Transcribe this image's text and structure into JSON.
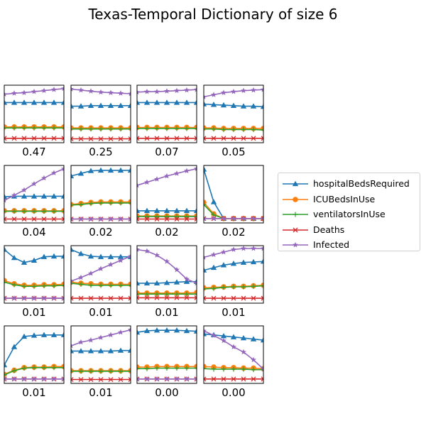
{
  "chart_data": {
    "type": "line",
    "title": "Texas-Temporal Dictionary of size 6",
    "series_styles": [
      {
        "name": "hospitalBedsRequired",
        "color": "#1f77b4",
        "marker": "triangle"
      },
      {
        "name": "ICUBedsInUse",
        "color": "#ff7f0e",
        "marker": "circle"
      },
      {
        "name": "ventilatorsInUse",
        "color": "#2ca02c",
        "marker": "plus"
      },
      {
        "name": "Deaths",
        "color": "#d62728",
        "marker": "x"
      },
      {
        "name": "Infected",
        "color": "#9467bd",
        "marker": "star"
      }
    ],
    "panels": [
      {
        "label": "0.47",
        "series": [
          [
            0.72,
            0.72,
            0.72,
            0.72,
            0.72,
            0.72,
            0.72
          ],
          [
            0.25,
            0.25,
            0.25,
            0.25,
            0.25,
            0.25,
            0.25
          ],
          [
            0.23,
            0.23,
            0.23,
            0.23,
            0.23,
            0.23,
            0.23
          ],
          [
            0.03,
            0.03,
            0.03,
            0.03,
            0.03,
            0.03,
            0.03
          ],
          [
            0.88,
            0.9,
            0.91,
            0.93,
            0.95,
            0.97,
            0.99
          ]
        ]
      },
      {
        "label": "0.25",
        "series": [
          [
            0.65,
            0.65,
            0.66,
            0.66,
            0.66,
            0.66,
            0.66
          ],
          [
            0.23,
            0.23,
            0.23,
            0.23,
            0.23,
            0.23,
            0.23
          ],
          [
            0.21,
            0.21,
            0.21,
            0.21,
            0.21,
            0.21,
            0.21
          ],
          [
            0.02,
            0.02,
            0.02,
            0.02,
            0.02,
            0.02,
            0.02
          ],
          [
            0.98,
            0.96,
            0.94,
            0.92,
            0.91,
            0.9,
            0.89
          ]
        ]
      },
      {
        "label": "0.07",
        "series": [
          [
            0.72,
            0.72,
            0.72,
            0.72,
            0.72,
            0.72,
            0.72
          ],
          [
            0.24,
            0.24,
            0.24,
            0.24,
            0.24,
            0.24,
            0.24
          ],
          [
            0.22,
            0.22,
            0.22,
            0.22,
            0.22,
            0.22,
            0.22
          ],
          [
            0.03,
            0.03,
            0.03,
            0.03,
            0.03,
            0.03,
            0.03
          ],
          [
            0.92,
            0.93,
            0.93,
            0.94,
            0.95,
            0.96,
            0.97
          ]
        ]
      },
      {
        "label": "0.05",
        "series": [
          [
            0.69,
            0.68,
            0.67,
            0.66,
            0.65,
            0.65,
            0.64
          ],
          [
            0.23,
            0.23,
            0.22,
            0.22,
            0.22,
            0.22,
            0.22
          ],
          [
            0.21,
            0.21,
            0.2,
            0.2,
            0.2,
            0.2,
            0.19
          ],
          [
            0.03,
            0.03,
            0.03,
            0.03,
            0.03,
            0.03,
            0.03
          ],
          [
            0.83,
            0.87,
            0.91,
            0.93,
            0.95,
            0.96,
            0.97
          ]
        ]
      },
      {
        "label": "0.04",
        "series": [
          [
            0.45,
            0.46,
            0.46,
            0.46,
            0.46,
            0.46,
            0.46
          ],
          [
            0.18,
            0.18,
            0.18,
            0.18,
            0.18,
            0.18,
            0.18
          ],
          [
            0.17,
            0.17,
            0.17,
            0.17,
            0.17,
            0.17,
            0.17
          ],
          [
            0.02,
            0.02,
            0.02,
            0.02,
            0.02,
            0.02,
            0.02
          ],
          [
            0.38,
            0.48,
            0.58,
            0.7,
            0.81,
            0.91,
            0.99
          ]
        ]
      },
      {
        "label": "0.02",
        "series": [
          [
            0.85,
            0.9,
            0.95,
            0.96,
            0.96,
            0.96,
            0.96
          ],
          [
            0.3,
            0.32,
            0.34,
            0.35,
            0.35,
            0.35,
            0.35
          ],
          [
            0.29,
            0.3,
            0.32,
            0.33,
            0.33,
            0.33,
            0.33
          ],
          [
            0.02,
            0.02,
            0.02,
            0.02,
            0.02,
            0.02,
            0.02
          ],
          [
            0.02,
            0.02,
            0.02,
            0.02,
            0.02,
            0.02,
            0.02
          ]
        ]
      },
      {
        "label": "0.02",
        "series": [
          [
            0.18,
            0.18,
            0.18,
            0.18,
            0.18,
            0.18,
            0.18
          ],
          [
            0.08,
            0.08,
            0.08,
            0.08,
            0.08,
            0.08,
            0.08
          ],
          [
            0.07,
            0.07,
            0.07,
            0.07,
            0.07,
            0.07,
            0.07
          ],
          [
            0.02,
            0.02,
            0.02,
            0.02,
            0.02,
            0.02,
            0.02
          ],
          [
            0.67,
            0.73,
            0.79,
            0.85,
            0.9,
            0.95,
            0.99
          ]
        ]
      },
      {
        "label": "0.02",
        "series": [
          [
            0.98,
            0.35,
            0.03,
            0.03,
            0.03,
            0.03,
            0.03
          ],
          [
            0.34,
            0.12,
            0.03,
            0.03,
            0.03,
            0.03,
            0.03
          ],
          [
            0.3,
            0.1,
            0.03,
            0.03,
            0.03,
            0.03,
            0.03
          ],
          [
            0.03,
            0.03,
            0.03,
            0.03,
            0.03,
            0.03,
            0.03
          ],
          [
            0.03,
            0.03,
            0.03,
            0.03,
            0.03,
            0.03,
            0.03
          ]
        ]
      },
      {
        "label": "0.01",
        "series": [
          [
            0.98,
            0.82,
            0.73,
            0.77,
            0.84,
            0.85,
            0.85
          ],
          [
            0.38,
            0.32,
            0.29,
            0.29,
            0.3,
            0.3,
            0.31
          ],
          [
            0.35,
            0.3,
            0.27,
            0.27,
            0.28,
            0.28,
            0.29
          ],
          [
            0.04,
            0.04,
            0.04,
            0.04,
            0.04,
            0.04,
            0.04
          ],
          [
            0.04,
            0.04,
            0.04,
            0.04,
            0.04,
            0.04,
            0.04
          ]
        ]
      },
      {
        "label": "0.01",
        "series": [
          [
            0.98,
            0.9,
            0.85,
            0.84,
            0.84,
            0.84,
            0.84
          ],
          [
            0.35,
            0.33,
            0.32,
            0.31,
            0.31,
            0.31,
            0.31
          ],
          [
            0.33,
            0.31,
            0.29,
            0.29,
            0.29,
            0.29,
            0.29
          ],
          [
            0.04,
            0.04,
            0.04,
            0.04,
            0.04,
            0.04,
            0.04
          ],
          [
            0.37,
            0.44,
            0.52,
            0.61,
            0.69,
            0.77,
            0.85
          ]
        ]
      },
      {
        "label": "0.01",
        "series": [
          [
            0.33,
            0.33,
            0.33,
            0.34,
            0.35,
            0.36,
            0.36
          ],
          [
            0.14,
            0.14,
            0.14,
            0.14,
            0.14,
            0.14,
            0.15
          ],
          [
            0.12,
            0.12,
            0.12,
            0.12,
            0.12,
            0.12,
            0.12
          ],
          [
            0.05,
            0.05,
            0.05,
            0.05,
            0.05,
            0.05,
            0.05
          ],
          [
            0.98,
            0.95,
            0.87,
            0.75,
            0.59,
            0.41,
            0.33
          ]
        ]
      },
      {
        "label": "0.01",
        "series": [
          [
            0.58,
            0.63,
            0.68,
            0.71,
            0.73,
            0.74,
            0.75
          ],
          [
            0.24,
            0.25,
            0.26,
            0.27,
            0.27,
            0.28,
            0.29
          ],
          [
            0.22,
            0.23,
            0.25,
            0.26,
            0.26,
            0.27,
            0.28
          ],
          [
            0.04,
            0.04,
            0.04,
            0.04,
            0.04,
            0.04,
            0.04
          ],
          [
            0.83,
            0.88,
            0.93,
            0.98,
            1.0,
            1.0,
            1.0
          ]
        ]
      },
      {
        "label": "0.01",
        "series": [
          [
            0.3,
            0.65,
            0.85,
            0.87,
            0.88,
            0.88,
            0.88
          ],
          [
            0.12,
            0.2,
            0.25,
            0.26,
            0.26,
            0.27,
            0.27
          ],
          [
            0.11,
            0.19,
            0.24,
            0.25,
            0.25,
            0.25,
            0.25
          ],
          [
            0.03,
            0.03,
            0.03,
            0.03,
            0.03,
            0.03,
            0.03
          ],
          [
            0.03,
            0.03,
            0.03,
            0.03,
            0.03,
            0.03,
            0.03
          ]
        ]
      },
      {
        "label": "0.01",
        "series": [
          [
            0.57,
            0.57,
            0.57,
            0.57,
            0.57,
            0.58,
            0.58
          ],
          [
            0.19,
            0.19,
            0.19,
            0.19,
            0.19,
            0.19,
            0.19
          ],
          [
            0.18,
            0.18,
            0.18,
            0.18,
            0.18,
            0.18,
            0.18
          ],
          [
            0.02,
            0.02,
            0.02,
            0.02,
            0.02,
            0.02,
            0.02
          ],
          [
            0.67,
            0.74,
            0.78,
            0.83,
            0.88,
            0.93,
            0.98
          ]
        ]
      },
      {
        "label": "0.00",
        "series": [
          [
            0.93,
            0.96,
            0.97,
            0.97,
            0.97,
            0.96,
            0.95
          ],
          [
            0.26,
            0.26,
            0.27,
            0.27,
            0.27,
            0.27,
            0.27
          ],
          [
            0.23,
            0.23,
            0.24,
            0.24,
            0.24,
            0.24,
            0.24
          ],
          [
            0.03,
            0.03,
            0.03,
            0.03,
            0.03,
            0.03,
            0.03
          ],
          [
            0.03,
            0.03,
            0.03,
            0.03,
            0.03,
            0.03,
            0.03
          ]
        ]
      },
      {
        "label": "0.00",
        "series": [
          [
            0.9,
            0.88,
            0.86,
            0.84,
            0.82,
            0.8,
            0.78
          ],
          [
            0.27,
            0.26,
            0.25,
            0.25,
            0.24,
            0.24,
            0.23
          ],
          [
            0.23,
            0.22,
            0.22,
            0.22,
            0.22,
            0.21,
            0.21
          ],
          [
            0.03,
            0.03,
            0.03,
            0.03,
            0.03,
            0.03,
            0.03
          ],
          [
            0.96,
            0.87,
            0.77,
            0.65,
            0.55,
            0.4,
            0.22
          ]
        ]
      }
    ]
  }
}
